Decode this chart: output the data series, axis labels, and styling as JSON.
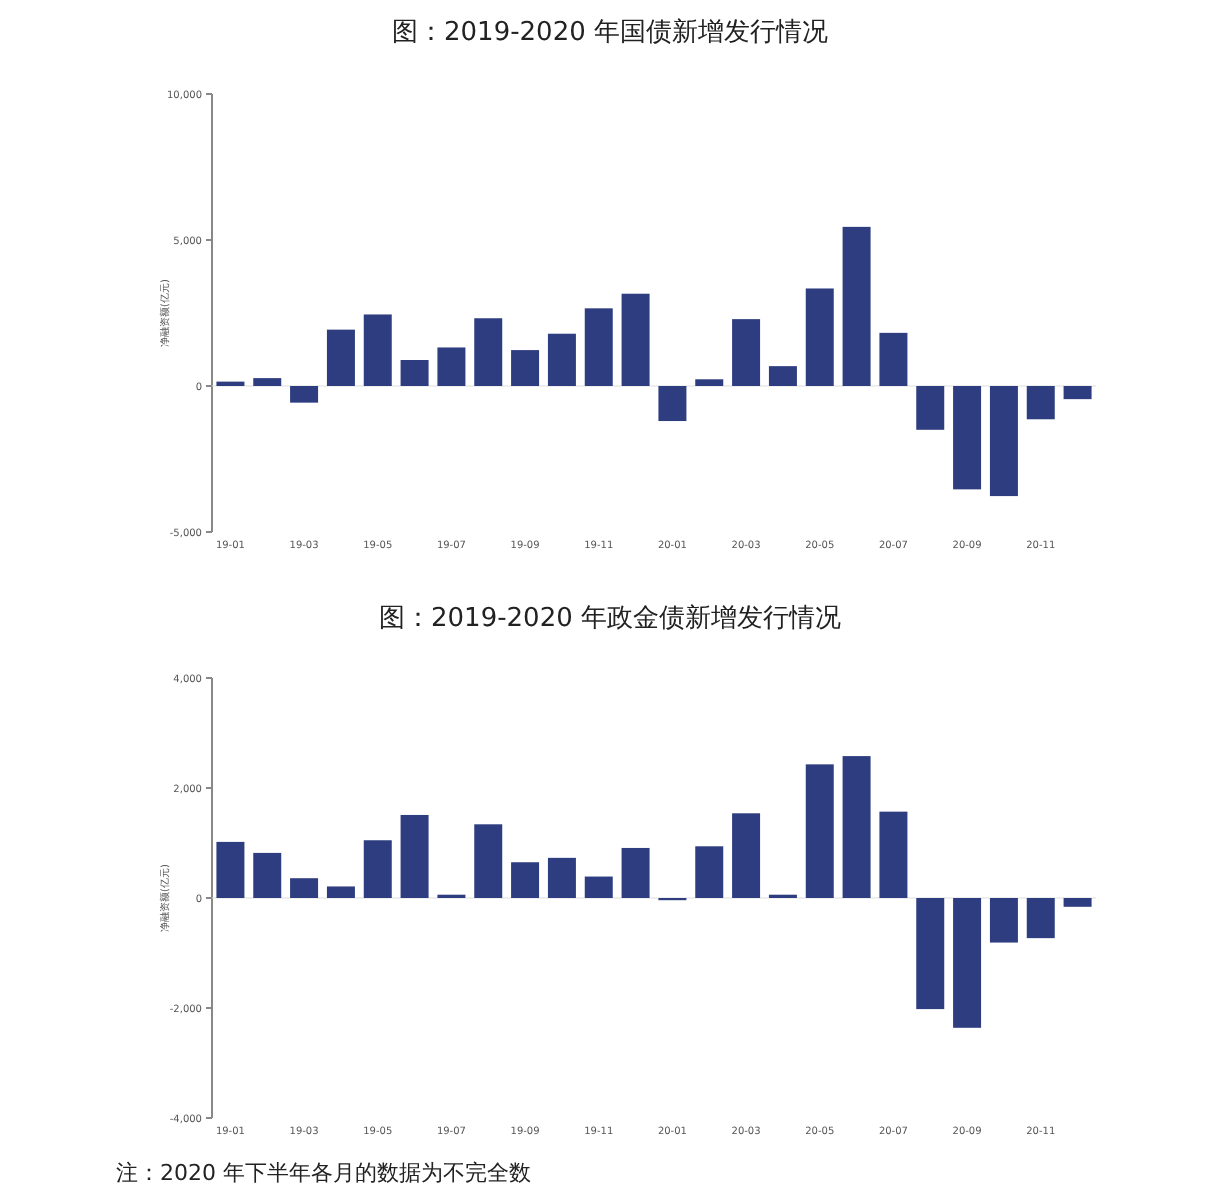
{
  "chart_data": [
    {
      "type": "bar",
      "title": "图：2019-2020 年国债新增发行情况",
      "ylabel": "净融资额(亿元)",
      "categories": [
        "19-01",
        null,
        "19-03",
        null,
        "19-05",
        null,
        "19-07",
        null,
        "19-09",
        null,
        "19-11",
        null,
        "20-01",
        null,
        "20-03",
        null,
        "20-05",
        null,
        "20-07",
        null,
        "20-09",
        null,
        "20-11",
        null
      ],
      "values": [
        150,
        270,
        -570,
        1930,
        2450,
        890,
        1320,
        2320,
        1230,
        1790,
        2660,
        3160,
        -1200,
        230,
        2290,
        680,
        3340,
        5450,
        1820,
        -1500,
        -3540,
        -3770,
        -1140,
        -450
      ],
      "color": "#2e3d80",
      "ylim": [
        -5000,
        10000
      ],
      "yticks": [
        {
          "value": -5000,
          "label": "-5,000"
        },
        {
          "value": 0,
          "label": "0"
        },
        {
          "value": 5000,
          "label": "5,000"
        },
        {
          "value": 10000,
          "label": "10,000"
        }
      ]
    },
    {
      "type": "bar",
      "title": "图：2019-2020 年政金债新增发行情况",
      "ylabel": "净融资额(亿元)",
      "categories": [
        "19-01",
        null,
        "19-03",
        null,
        "19-05",
        null,
        "19-07",
        null,
        "19-09",
        null,
        "19-11",
        null,
        "20-01",
        null,
        "20-03",
        null,
        "20-05",
        null,
        "20-07",
        null,
        "20-09",
        null,
        "20-11",
        null
      ],
      "values": [
        1020,
        820,
        360,
        210,
        1050,
        1510,
        60,
        1340,
        650,
        730,
        390,
        910,
        -40,
        940,
        1540,
        60,
        2430,
        2580,
        1570,
        -2020,
        -2360,
        -810,
        -730,
        -160
      ],
      "color": "#2e3d80",
      "ylim": [
        -4000,
        4000
      ],
      "yticks": [
        {
          "value": -4000,
          "label": "-4,000"
        },
        {
          "value": -2000,
          "label": "-2,000"
        },
        {
          "value": 0,
          "label": "0"
        },
        {
          "value": 2000,
          "label": "2,000"
        },
        {
          "value": 4000,
          "label": "4,000"
        }
      ],
      "annotations": [
        "注：2020 年下半年各月的数据为不完全数"
      ]
    }
  ]
}
